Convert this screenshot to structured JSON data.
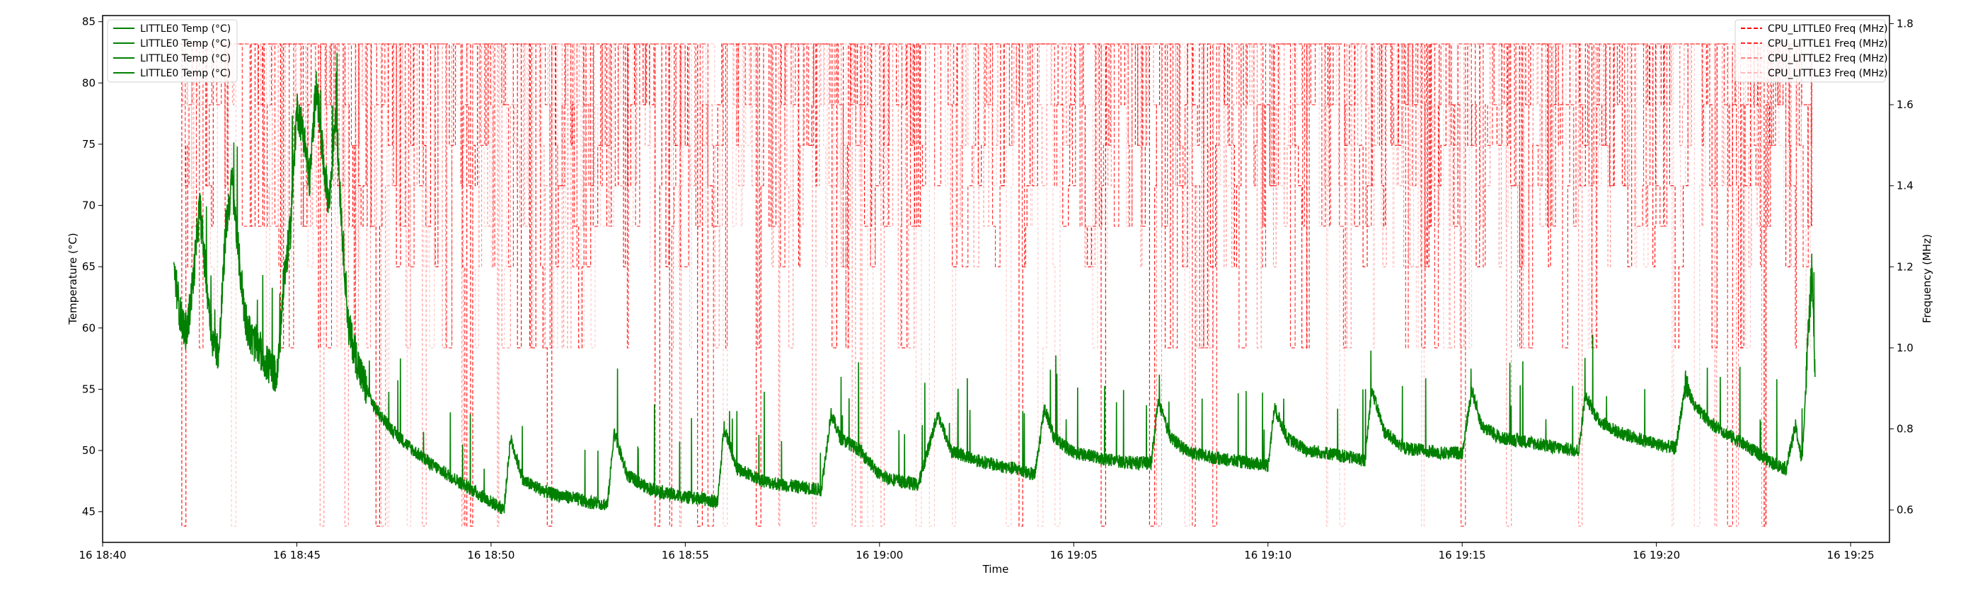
{
  "chart_data": {
    "type": "line",
    "xlabel": "Time",
    "ylabel_left": "Temperature (°C)",
    "ylabel_right": "Frequency (MHz)",
    "x_domain": [
      "16 18:40",
      "16 19:26"
    ],
    "x_ticks": [
      "16 18:40",
      "16 18:45",
      "16 18:50",
      "16 18:55",
      "16 19:00",
      "16 19:05",
      "16 19:10",
      "16 19:15",
      "16 19:20",
      "16 19:25"
    ],
    "ylim_left": [
      42.5,
      85.5
    ],
    "yticks_left": [
      45,
      50,
      55,
      60,
      65,
      70,
      75,
      80,
      85
    ],
    "ylim_right": [
      0.52,
      1.82
    ],
    "yticks_right": [
      0.6,
      0.8,
      1.0,
      1.2,
      1.4,
      1.6,
      1.8
    ],
    "grid": false,
    "legend_left": {
      "placement": "top-left",
      "entries": [
        "LITTLE0 Temp (°C)",
        "LITTLE0 Temp (°C)",
        "LITTLE0 Temp (°C)",
        "LITTLE0 Temp (°C)"
      ]
    },
    "legend_right": {
      "placement": "top-right",
      "entries": [
        "CPU_LITTLE0 Freq (MHz)",
        "CPU_LITTLE1 Freq (MHz)",
        "CPU_LITTLE2 Freq (MHz)",
        "CPU_LITTLE3 Freq (MHz)"
      ]
    },
    "colors": {
      "temp": "#008000",
      "freq": [
        "#ff0000",
        "#ff0000",
        "#ff5050",
        "#ff9090"
      ]
    },
    "freq_levels": [
      0.56,
      1.0,
      1.2,
      1.3,
      1.4,
      1.5,
      1.6,
      1.75
    ],
    "temp_series": {
      "name": "LITTLE0 Temp (°C)",
      "axis": "left",
      "points": [
        [
          "18:41:50",
          65.0
        ],
        [
          "18:42:00",
          61.0
        ],
        [
          "18:42:10",
          59.5
        ],
        [
          "18:42:20",
          64.0
        ],
        [
          "18:42:30",
          70.0
        ],
        [
          "18:42:40",
          64.0
        ],
        [
          "18:42:50",
          59.0
        ],
        [
          "18:43:00",
          58.0
        ],
        [
          "18:43:10",
          68.0
        ],
        [
          "18:43:20",
          72.0
        ],
        [
          "18:43:30",
          66.0
        ],
        [
          "18:43:40",
          61.0
        ],
        [
          "18:43:50",
          59.0
        ],
        [
          "18:44:00",
          58.5
        ],
        [
          "18:44:15",
          57.0
        ],
        [
          "18:44:30",
          56.0
        ],
        [
          "18:44:40",
          64.0
        ],
        [
          "18:44:50",
          68.0
        ],
        [
          "18:45:00",
          78.0
        ],
        [
          "18:45:10",
          76.0
        ],
        [
          "18:45:20",
          72.0
        ],
        [
          "18:45:30",
          80.0
        ],
        [
          "18:45:40",
          74.0
        ],
        [
          "18:45:50",
          70.0
        ],
        [
          "18:46:00",
          78.0
        ],
        [
          "18:46:10",
          68.0
        ],
        [
          "18:46:20",
          60.0
        ],
        [
          "18:46:40",
          56.0
        ],
        [
          "18:47:00",
          53.5
        ],
        [
          "18:47:30",
          51.5
        ],
        [
          "18:48:00",
          50.0
        ],
        [
          "18:48:30",
          48.8
        ],
        [
          "18:49:00",
          47.8
        ],
        [
          "18:49:30",
          46.8
        ],
        [
          "18:50:00",
          45.8
        ],
        [
          "18:50:20",
          45.2
        ],
        [
          "18:50:30",
          51.0
        ],
        [
          "18:50:50",
          47.5
        ],
        [
          "18:51:30",
          46.5
        ],
        [
          "18:52:00",
          46.2
        ],
        [
          "18:52:30",
          45.8
        ],
        [
          "18:53:00",
          45.6
        ],
        [
          "18:53:10",
          51.5
        ],
        [
          "18:53:30",
          48.0
        ],
        [
          "18:54:00",
          47.0
        ],
        [
          "18:54:30",
          46.5
        ],
        [
          "18:55:00",
          46.2
        ],
        [
          "18:55:30",
          46.0
        ],
        [
          "18:55:50",
          45.8
        ],
        [
          "18:56:00",
          52.0
        ],
        [
          "18:56:20",
          48.5
        ],
        [
          "18:57:00",
          47.5
        ],
        [
          "18:57:30",
          47.2
        ],
        [
          "18:58:00",
          47.0
        ],
        [
          "18:58:30",
          46.8
        ],
        [
          "18:58:45",
          53.0
        ],
        [
          "18:59:00",
          51.0
        ],
        [
          "18:59:30",
          50.0
        ],
        [
          "19:00:00",
          48.0
        ],
        [
          "19:00:30",
          47.5
        ],
        [
          "19:01:00",
          47.2
        ],
        [
          "19:01:30",
          53.0
        ],
        [
          "19:01:50",
          50.0
        ],
        [
          "19:02:30",
          49.2
        ],
        [
          "19:03:00",
          48.8
        ],
        [
          "19:03:30",
          48.5
        ],
        [
          "19:04:00",
          48.0
        ],
        [
          "19:04:15",
          53.5
        ],
        [
          "19:04:30",
          51.0
        ],
        [
          "19:05:00",
          49.8
        ],
        [
          "19:05:30",
          49.5
        ],
        [
          "19:06:00",
          49.2
        ],
        [
          "19:06:30",
          49.0
        ],
        [
          "19:07:00",
          49.0
        ],
        [
          "19:07:10",
          54.0
        ],
        [
          "19:07:30",
          51.0
        ],
        [
          "19:08:00",
          49.8
        ],
        [
          "19:08:30",
          49.5
        ],
        [
          "19:09:00",
          49.2
        ],
        [
          "19:09:30",
          49.0
        ],
        [
          "19:10:00",
          48.8
        ],
        [
          "19:10:10",
          53.5
        ],
        [
          "19:10:30",
          51.0
        ],
        [
          "19:11:00",
          50.0
        ],
        [
          "19:11:30",
          49.8
        ],
        [
          "19:12:00",
          49.5
        ],
        [
          "19:12:30",
          49.2
        ],
        [
          "19:12:40",
          55.0
        ],
        [
          "19:13:00",
          51.5
        ],
        [
          "19:13:30",
          50.2
        ],
        [
          "19:14:00",
          50.0
        ],
        [
          "19:14:30",
          49.8
        ],
        [
          "19:15:00",
          49.8
        ],
        [
          "19:15:15",
          55.0
        ],
        [
          "19:15:30",
          52.0
        ],
        [
          "19:16:00",
          51.0
        ],
        [
          "19:16:30",
          50.8
        ],
        [
          "19:17:00",
          50.5
        ],
        [
          "19:17:30",
          50.2
        ],
        [
          "19:18:00",
          50.0
        ],
        [
          "19:18:10",
          54.5
        ],
        [
          "19:18:30",
          52.5
        ],
        [
          "19:19:00",
          51.5
        ],
        [
          "19:19:30",
          51.0
        ],
        [
          "19:20:00",
          50.5
        ],
        [
          "19:20:30",
          50.2
        ],
        [
          "19:20:45",
          55.5
        ],
        [
          "19:21:00",
          53.5
        ],
        [
          "19:21:30",
          52.0
        ],
        [
          "19:22:00",
          51.0
        ],
        [
          "19:22:30",
          50.0
        ],
        [
          "19:23:00",
          49.0
        ],
        [
          "19:23:20",
          48.5
        ],
        [
          "19:23:35",
          52.0
        ],
        [
          "19:23:45",
          49.0
        ],
        [
          "19:23:55",
          60.0
        ],
        [
          "19:24:00",
          64.5
        ],
        [
          "19:24:05",
          56.0
        ]
      ]
    }
  }
}
